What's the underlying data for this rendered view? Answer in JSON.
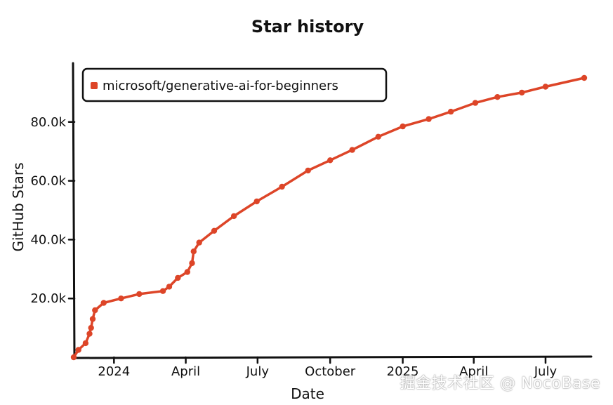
{
  "chart_data": {
    "type": "line",
    "title": "Star history",
    "xlabel": "Date",
    "ylabel": "GitHub Stars",
    "x_ticks": [
      "2024",
      "April",
      "July",
      "October",
      "2025",
      "April",
      "July"
    ],
    "x_tick_dates": [
      "2024-01-01",
      "2024-04-01",
      "2024-07-01",
      "2024-10-01",
      "2025-01-01",
      "2025-04-01",
      "2025-07-01"
    ],
    "y_ticks": [
      "20.0k",
      "40.0k",
      "60.0k",
      "80.0k"
    ],
    "y_tick_values": [
      20000,
      40000,
      60000,
      80000
    ],
    "xlim": [
      "2023-11-11",
      "2025-08-19"
    ],
    "ylim": [
      0,
      100000
    ],
    "grid": false,
    "legend_position": "top-left",
    "color": "#dd4528",
    "series": [
      {
        "name": "microsoft/generative-ai-for-beginners",
        "points": [
          [
            "2023-11-11",
            0
          ],
          [
            "2023-11-17",
            2500
          ],
          [
            "2023-11-26",
            4800
          ],
          [
            "2023-12-01",
            8000
          ],
          [
            "2023-12-03",
            10000
          ],
          [
            "2023-12-05",
            13000
          ],
          [
            "2023-12-08",
            16000
          ],
          [
            "2023-12-19",
            18500
          ],
          [
            "2024-01-10",
            20000
          ],
          [
            "2024-02-02",
            21500
          ],
          [
            "2024-03-03",
            22500
          ],
          [
            "2024-03-11",
            24000
          ],
          [
            "2024-03-22",
            27000
          ],
          [
            "2024-04-03",
            29000
          ],
          [
            "2024-04-09",
            32000
          ],
          [
            "2024-04-11",
            36000
          ],
          [
            "2024-04-18",
            39000
          ],
          [
            "2024-05-07",
            43000
          ],
          [
            "2024-06-01",
            48000
          ],
          [
            "2024-06-30",
            53000
          ],
          [
            "2024-08-01",
            58000
          ],
          [
            "2024-09-03",
            63500
          ],
          [
            "2024-10-01",
            67000
          ],
          [
            "2024-10-29",
            70500
          ],
          [
            "2024-12-01",
            75000
          ],
          [
            "2025-01-01",
            78500
          ],
          [
            "2025-02-03",
            81000
          ],
          [
            "2025-03-03",
            83500
          ],
          [
            "2025-04-03",
            86500
          ],
          [
            "2025-05-01",
            88500
          ],
          [
            "2025-06-01",
            90000
          ],
          [
            "2025-07-01",
            92000
          ],
          [
            "2025-08-19",
            95000
          ]
        ]
      }
    ]
  },
  "watermark": "掘金技术社区 @ NocoBase"
}
